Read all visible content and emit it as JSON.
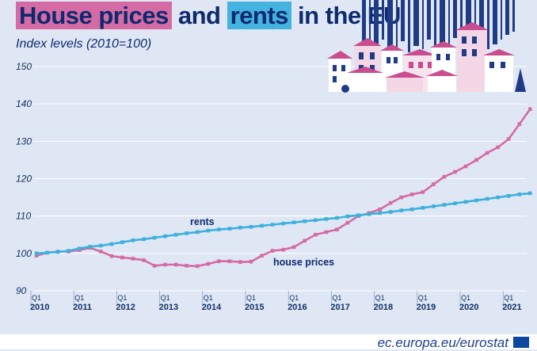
{
  "title": {
    "part1": "House prices",
    "part2": "and",
    "part3": "rents",
    "part4": "in the EU"
  },
  "subtitle": "Index levels (2010=100)",
  "footer": {
    "text": "ec.europa.eu/eurostat"
  },
  "colors": {
    "house_prices": "#d56ba4",
    "rents": "#3eb0dc",
    "background": "#dfe7f4",
    "grid": "#ffffff",
    "text": "#0e2a6e"
  },
  "icons": [
    "city-skyline-illustration",
    "eu-flag-icon"
  ],
  "chart_data": {
    "type": "line",
    "x": [
      "2010Q1",
      "2010Q2",
      "2010Q3",
      "2010Q4",
      "2011Q1",
      "2011Q2",
      "2011Q3",
      "2011Q4",
      "2012Q1",
      "2012Q2",
      "2012Q3",
      "2012Q4",
      "2013Q1",
      "2013Q2",
      "2013Q3",
      "2013Q4",
      "2014Q1",
      "2014Q2",
      "2014Q3",
      "2014Q4",
      "2015Q1",
      "2015Q2",
      "2015Q3",
      "2015Q4",
      "2016Q1",
      "2016Q2",
      "2016Q3",
      "2016Q4",
      "2017Q1",
      "2017Q2",
      "2017Q3",
      "2017Q4",
      "2018Q1",
      "2018Q2",
      "2018Q3",
      "2018Q4",
      "2019Q1",
      "2019Q2",
      "2019Q3",
      "2019Q4",
      "2020Q1",
      "2020Q2",
      "2020Q3",
      "2020Q4",
      "2021Q1",
      "2021Q2",
      "2021Q3"
    ],
    "x_tick_labels": {
      "quarter": "Q1",
      "years": [
        "2010",
        "2011",
        "2012",
        "2013",
        "2014",
        "2015",
        "2016",
        "2017",
        "2018",
        "2019",
        "2020",
        "2021"
      ]
    },
    "series": [
      {
        "name": "house prices",
        "values": [
          99.4,
          100.2,
          100.5,
          100.5,
          100.9,
          101.5,
          100.5,
          99.3,
          98.9,
          98.6,
          98.2,
          96.7,
          97.0,
          97.0,
          96.7,
          96.6,
          97.2,
          97.9,
          97.9,
          97.7,
          97.8,
          99.4,
          100.7,
          101.0,
          101.7,
          103.4,
          105.0,
          105.7,
          106.4,
          108.2,
          110.0,
          110.8,
          111.8,
          113.5,
          115.0,
          115.8,
          116.4,
          118.5,
          120.5,
          121.8,
          123.3,
          125.0,
          126.9,
          128.4,
          130.6,
          134.6,
          138.6
        ]
      },
      {
        "name": "rents",
        "values": [
          100.0,
          100.2,
          100.4,
          100.7,
          101.3,
          101.8,
          102.1,
          102.5,
          103.0,
          103.5,
          103.8,
          104.2,
          104.6,
          105.0,
          105.4,
          105.7,
          106.1,
          106.4,
          106.6,
          106.9,
          107.1,
          107.4,
          107.7,
          108.0,
          108.3,
          108.6,
          108.9,
          109.2,
          109.5,
          109.9,
          110.2,
          110.5,
          110.8,
          111.1,
          111.5,
          111.8,
          112.2,
          112.6,
          113.0,
          113.4,
          113.8,
          114.2,
          114.6,
          115.0,
          115.4,
          115.8,
          116.1
        ]
      }
    ],
    "series_labels": {
      "rents": "rents",
      "house_prices": "house prices"
    },
    "ylim": [
      90,
      150
    ],
    "yticks": [
      90,
      100,
      110,
      120,
      130,
      140,
      150
    ],
    "grid": true,
    "legend": "inline labels"
  }
}
